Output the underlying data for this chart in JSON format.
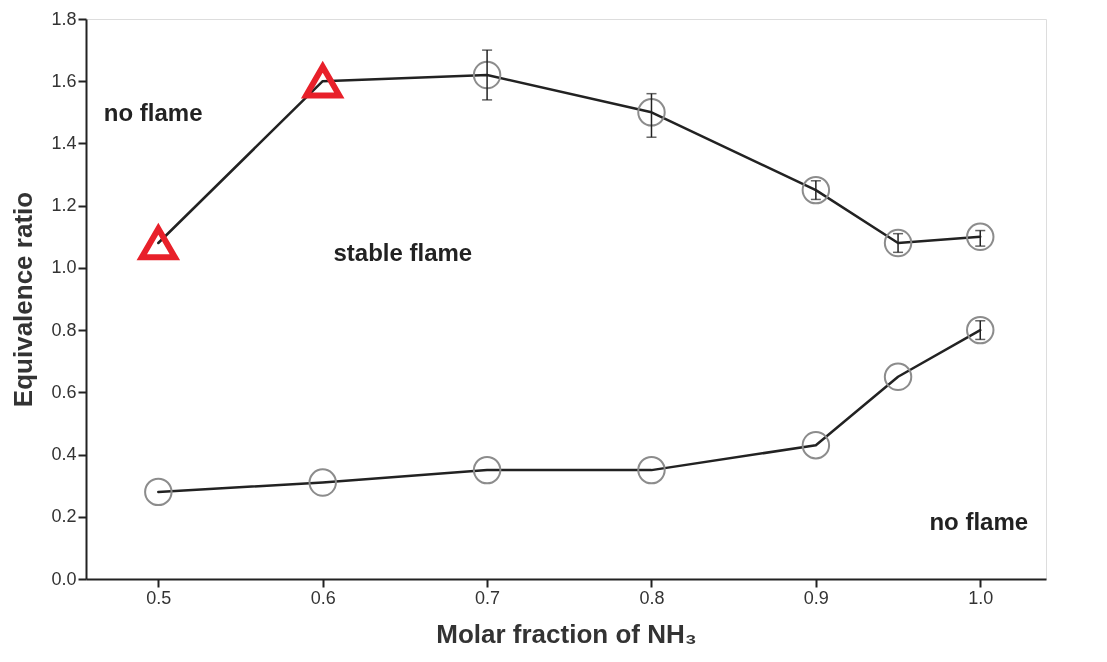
{
  "chart_data": {
    "type": "line",
    "xlabel": "Molar fraction of NH₃",
    "ylabel": "Equivalence  ratio",
    "xlim": [
      0.456,
      1.04
    ],
    "xticks": [
      0.5,
      0.6,
      0.7,
      0.8,
      0.9,
      {
        "value": 1.0,
        "label": "1.0"
      }
    ],
    "ylim": [
      0,
      1.8
    ],
    "yticks": [
      {
        "value": 0,
        "label": "0.0"
      },
      0.2,
      0.4,
      0.6,
      0.8,
      {
        "value": 1.0,
        "label": "1.0"
      },
      1.2,
      1.4,
      1.6,
      1.8
    ],
    "grid": false,
    "line_style": "solid",
    "series": [
      {
        "color": "#222222",
        "marker": "none",
        "x": [
          0.5,
          0.6,
          0.7,
          0.8,
          0.9,
          0.95,
          1.0
        ],
        "values": [
          1.08,
          1.6,
          1.62,
          1.5,
          1.25,
          1.08,
          1.1
        ]
      },
      {
        "color": "#222222",
        "marker": "none",
        "x": [
          0.5,
          0.6,
          0.7,
          0.8,
          0.9,
          0.95,
          1.0
        ],
        "values": [
          0.28,
          0.31,
          0.35,
          0.35,
          0.43,
          0.65,
          0.8
        ]
      },
      {
        "type": "scatter",
        "color": "#e8202a",
        "marker": "triangle",
        "x": [
          0.5,
          0.6
        ],
        "values": [
          1.08,
          1.6
        ]
      },
      {
        "type": "scatter",
        "color": "#8c8c8c",
        "marker": "circle",
        "x": [
          0.7,
          0.8,
          0.9,
          0.95,
          1.0
        ],
        "values": [
          1.62,
          1.5,
          1.25,
          1.08,
          1.1
        ],
        "errors": [
          [
            1.54,
            1.7
          ],
          [
            1.42,
            1.56
          ],
          [
            1.22,
            1.28
          ],
          [
            1.05,
            1.11
          ],
          [
            1.07,
            1.12
          ]
        ]
      },
      {
        "type": "scatter",
        "color": "#8c8c8c",
        "marker": "circle",
        "x": [
          0.5,
          0.6,
          0.7,
          0.8,
          0.9,
          0.95,
          1.0
        ],
        "values": [
          0.28,
          0.31,
          0.35,
          0.35,
          0.43,
          0.65,
          0.8
        ],
        "errors": [
          null,
          null,
          null,
          null,
          null,
          null,
          [
            0.77,
            0.83
          ]
        ]
      }
    ],
    "annotations": [
      "no flame",
      "stable flame",
      "no flame"
    ]
  }
}
